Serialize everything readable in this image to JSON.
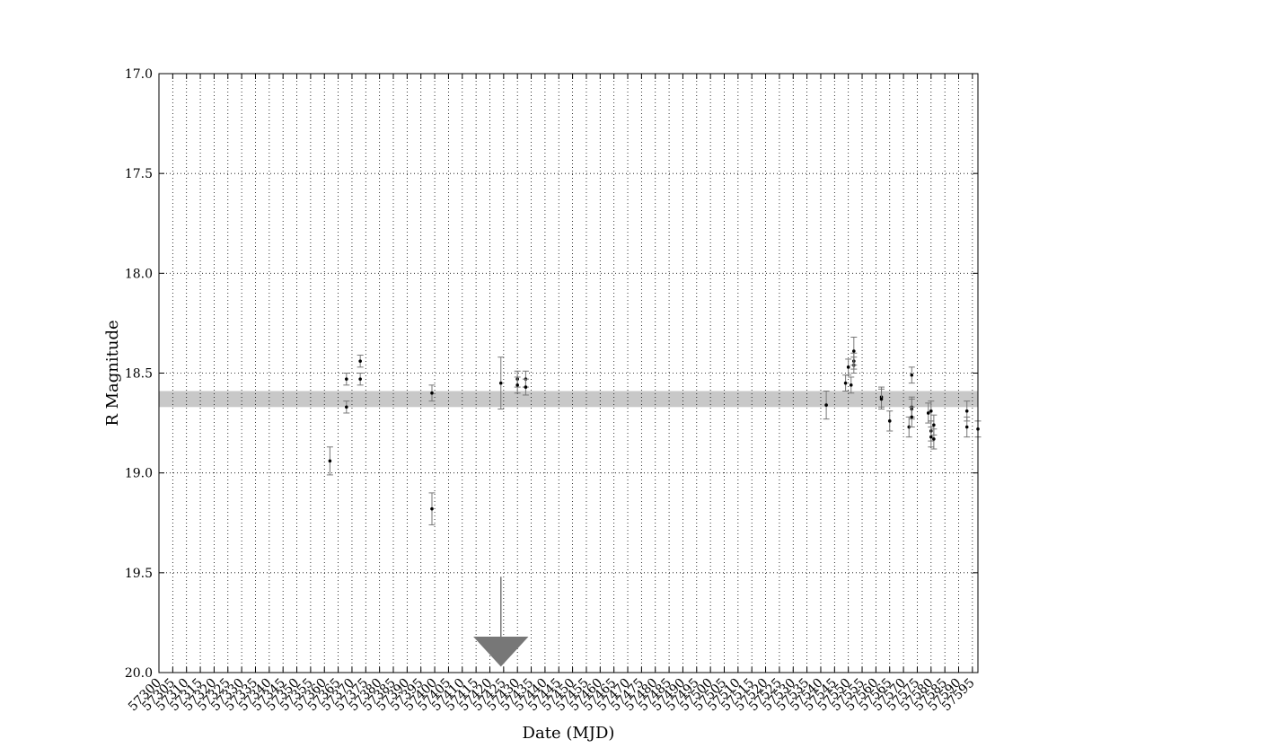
{
  "chart_data": {
    "type": "scatter",
    "title": "",
    "xlabel": "Date (MJD)",
    "ylabel": "R Magnitude",
    "xlim": [
      57300,
      57597
    ],
    "ylim": [
      20.0,
      17.0
    ],
    "y_inverted": true,
    "grid": true,
    "y_ticks": [
      "17.0",
      "17.5",
      "18.0",
      "18.5",
      "19.0",
      "19.5",
      "20.0"
    ],
    "x_tick_start": 57300,
    "x_tick_step": 5,
    "x_tick_end": 57595,
    "mean_band": {
      "low": 18.59,
      "high": 18.67
    },
    "colors": {
      "points": "#000000",
      "errorbars": "#777777",
      "band": "#c8c8c8",
      "arrow": "#777777"
    },
    "points": [
      {
        "x": 57362,
        "y": 18.94,
        "err": 0.07
      },
      {
        "x": 57368,
        "y": 18.53,
        "err": 0.03
      },
      {
        "x": 57368,
        "y": 18.67,
        "err": 0.03
      },
      {
        "x": 57373,
        "y": 18.44,
        "err": 0.03
      },
      {
        "x": 57373,
        "y": 18.53,
        "err": 0.03
      },
      {
        "x": 57399,
        "y": 18.6,
        "err": 0.04
      },
      {
        "x": 57399,
        "y": 19.18,
        "err": 0.08
      },
      {
        "x": 57424,
        "y": 18.55,
        "err": 0.13
      },
      {
        "x": 57430,
        "y": 18.53,
        "err": 0.04
      },
      {
        "x": 57430,
        "y": 18.56,
        "err": 0.04
      },
      {
        "x": 57433,
        "y": 18.53,
        "err": 0.04
      },
      {
        "x": 57433,
        "y": 18.57,
        "err": 0.04
      },
      {
        "x": 57542,
        "y": 18.66,
        "err": 0.07
      },
      {
        "x": 57549,
        "y": 18.55,
        "err": 0.04
      },
      {
        "x": 57550,
        "y": 18.47,
        "err": 0.04
      },
      {
        "x": 57551,
        "y": 18.56,
        "err": 0.04
      },
      {
        "x": 57552,
        "y": 18.46,
        "err": 0.04
      },
      {
        "x": 57552,
        "y": 18.44,
        "err": 0.04
      },
      {
        "x": 57552,
        "y": 18.39,
        "err": 0.07
      },
      {
        "x": 57562,
        "y": 18.62,
        "err": 0.05
      },
      {
        "x": 57562,
        "y": 18.63,
        "err": 0.05
      },
      {
        "x": 57565,
        "y": 18.74,
        "err": 0.05
      },
      {
        "x": 57572,
        "y": 18.77,
        "err": 0.05
      },
      {
        "x": 57573,
        "y": 18.51,
        "err": 0.04
      },
      {
        "x": 57573,
        "y": 18.67,
        "err": 0.05
      },
      {
        "x": 57573,
        "y": 18.68,
        "err": 0.05
      },
      {
        "x": 57573,
        "y": 18.72,
        "err": 0.05
      },
      {
        "x": 57579,
        "y": 18.7,
        "err": 0.05
      },
      {
        "x": 57580,
        "y": 18.69,
        "err": 0.05
      },
      {
        "x": 57580,
        "y": 18.79,
        "err": 0.05
      },
      {
        "x": 57580,
        "y": 18.82,
        "err": 0.05
      },
      {
        "x": 57581,
        "y": 18.76,
        "err": 0.05
      },
      {
        "x": 57581,
        "y": 18.83,
        "err": 0.05
      },
      {
        "x": 57593,
        "y": 18.69,
        "err": 0.05
      },
      {
        "x": 57593,
        "y": 18.77,
        "err": 0.05
      },
      {
        "x": 57597,
        "y": 18.78,
        "err": 0.04
      }
    ],
    "upper_limits": [
      {
        "x": 57424,
        "y_top": 19.52,
        "y_head": 19.82,
        "y_tip": 19.97,
        "head_halfwidth_days": 10
      }
    ]
  }
}
